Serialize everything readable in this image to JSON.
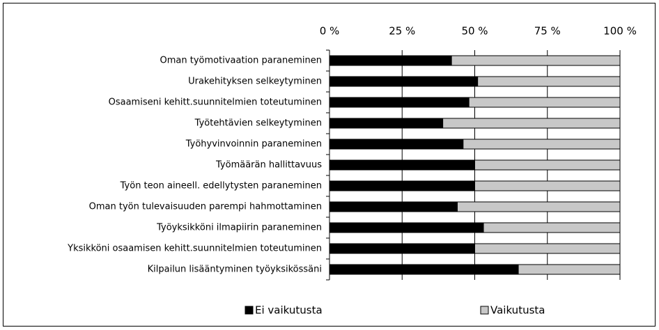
{
  "chart_data": {
    "type": "stacked-barh",
    "categories": [
      "Oman työmotivaation paraneminen",
      "Urakehityksen selkeytyminen",
      "Osaamiseni kehitt.suunnitelmien toteutuminen",
      "Työtehtävien selkeytyminen",
      "Työhyvinvoinnin paraneminen",
      "Työmäärän hallittavuus",
      "Työn teon aineell. edellytysten paraneminen",
      "Oman työn tulevaisuuden parempi hahmottaminen",
      "Työyksikköni ilmapiirin paraneminen",
      "Yksikköni osaamisen kehitt.suunnitelmien toteutuminen",
      "Kilpailun lisääntyminen työyksikössäni"
    ],
    "series": [
      {
        "name": "Ei vaikutusta",
        "color": "#000000",
        "values": [
          42,
          51,
          48,
          39,
          46,
          50,
          50,
          44,
          53,
          50,
          65
        ]
      },
      {
        "name": "Vaikutusta",
        "color": "#c8c8c8",
        "values": [
          58,
          49,
          52,
          61,
          54,
          50,
          50,
          56,
          47,
          50,
          35
        ]
      }
    ],
    "xlim": [
      0,
      100
    ],
    "xticks": [
      {
        "value": 0,
        "label": "0 %"
      },
      {
        "value": 25,
        "label": "25 %"
      },
      {
        "value": 50,
        "label": "50 %"
      },
      {
        "value": 75,
        "label": "75 %"
      },
      {
        "value": 100,
        "label": "100 %"
      }
    ],
    "grid": true,
    "legend": "bottom"
  }
}
